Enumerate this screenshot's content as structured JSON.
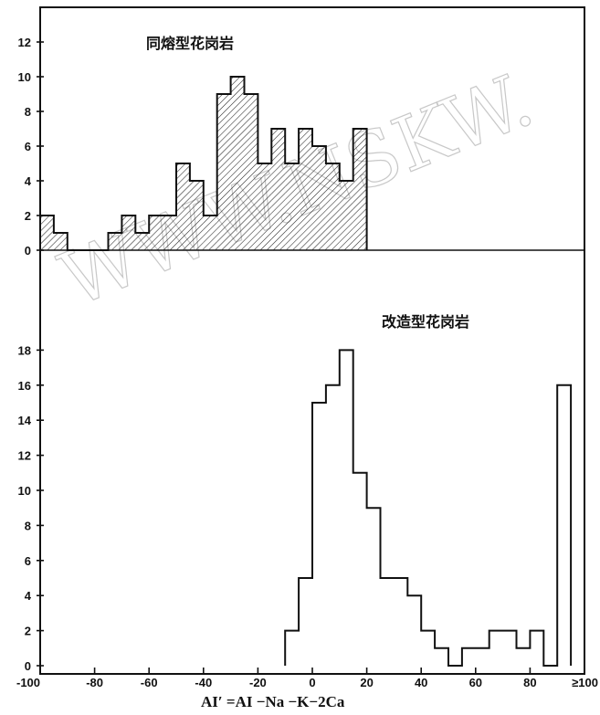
{
  "chart_data": [
    {
      "type": "bar",
      "title": "同熔型花岗岩",
      "bin_width": 5,
      "x": [
        -100,
        -95,
        -90,
        -85,
        -80,
        -75,
        -70,
        -65,
        -60,
        -55,
        -50,
        -45,
        -40,
        -35,
        -30,
        -25,
        -20,
        -15,
        -10,
        -5,
        0,
        5,
        10,
        15
      ],
      "values": [
        2,
        1,
        0,
        0,
        0,
        1,
        2,
        1,
        2,
        2,
        5,
        4,
        2,
        9,
        10,
        9,
        5,
        7,
        5,
        7,
        6,
        5,
        4,
        7
      ],
      "ylim": [
        0,
        13
      ],
      "yticks": [
        0,
        2,
        4,
        6,
        8,
        10,
        12
      ],
      "style": "hatched"
    },
    {
      "type": "bar",
      "title": "改造型花岗岩",
      "bin_width": 5,
      "x": [
        -10,
        -5,
        0,
        5,
        10,
        15,
        20,
        25,
        30,
        35,
        40,
        45,
        50,
        55,
        60,
        65,
        70,
        75,
        80,
        85,
        90
      ],
      "values": [
        2,
        5,
        15,
        16,
        18,
        11,
        9,
        5,
        5,
        4,
        2,
        1,
        0,
        1,
        1,
        2,
        2,
        1,
        2,
        0,
        16
      ],
      "ylim": [
        0,
        19
      ],
      "yticks": [
        0,
        2,
        4,
        6,
        8,
        10,
        12,
        14,
        16,
        18
      ],
      "style": "outline"
    }
  ],
  "axes": {
    "xlim": [
      -100,
      100
    ],
    "xticks": [
      "-100",
      "-80",
      "-60",
      "-40",
      "-20",
      "0",
      "20",
      "40",
      "60",
      "80",
      "≥100"
    ],
    "xtick_values": [
      -100,
      -80,
      -60,
      -40,
      -20,
      0,
      20,
      40,
      60,
      80,
      100
    ],
    "xlabel": "AI′ =AI −Na −K−2Ca"
  },
  "watermark": "WWW.NSKW."
}
